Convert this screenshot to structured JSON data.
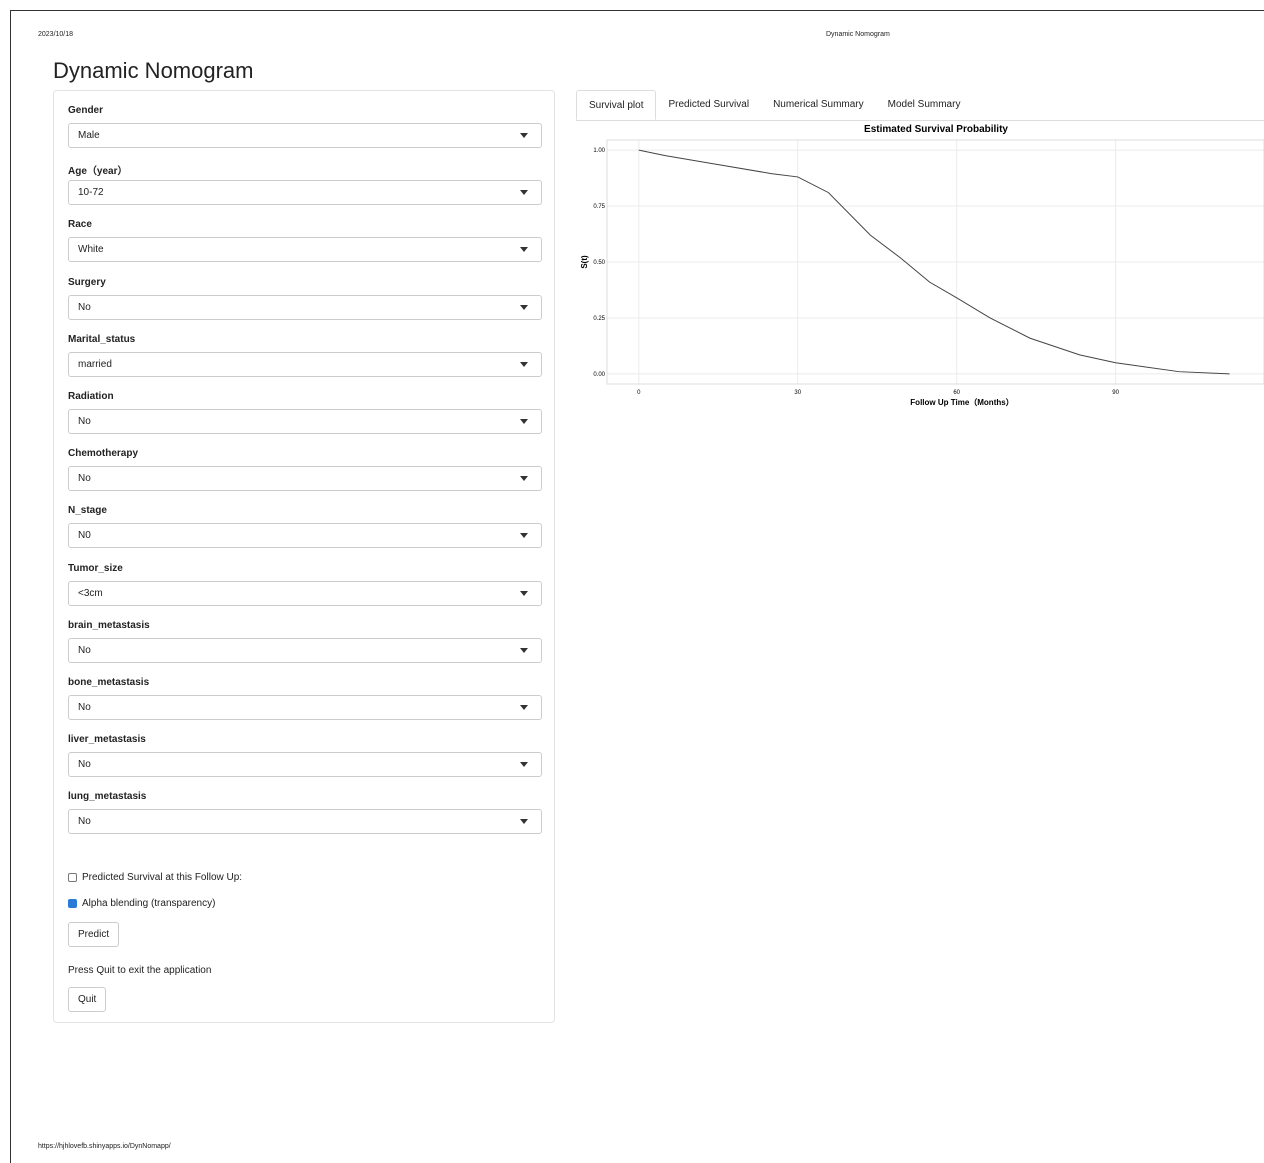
{
  "header": {
    "date": "2023/10/18",
    "page_title": "Dynamic Nomogram",
    "url": "https://hjhlovefb.shinyapps.io/DynNomapp/"
  },
  "app_title": "Dynamic Nomogram",
  "inputs": [
    {
      "label": "Gender",
      "value": "Male"
    },
    {
      "label": "Age（year）",
      "value": "10-72"
    },
    {
      "label": "Race",
      "value": "White"
    },
    {
      "label": "Surgery",
      "value": "No"
    },
    {
      "label": "Marital_status",
      "value": "married"
    },
    {
      "label": "Radiation",
      "value": "No"
    },
    {
      "label": "Chemotherapy",
      "value": "No"
    },
    {
      "label": "N_stage",
      "value": "N0"
    },
    {
      "label": "Tumor_size",
      "value": "<3cm"
    },
    {
      "label": "brain_metastasis",
      "value": "No"
    },
    {
      "label": "bone_metastasis",
      "value": "No"
    },
    {
      "label": "liver_metastasis",
      "value": "No"
    },
    {
      "label": "lung_metastasis",
      "value": "No"
    }
  ],
  "checkboxes": [
    {
      "label": "Predicted Survival at this Follow Up:",
      "checked": false
    },
    {
      "label": "Alpha blending (transparency)",
      "checked": true
    }
  ],
  "predict_button": "Predict",
  "quit_text": "Press Quit to exit the application",
  "quit_button": "Quit",
  "tabs": [
    {
      "label": "Survival plot",
      "active": true
    },
    {
      "label": "Predicted Survival",
      "active": false
    },
    {
      "label": "Numerical Summary",
      "active": false
    },
    {
      "label": "Model Summary",
      "active": false
    }
  ],
  "chart_data": {
    "type": "line",
    "title": "Estimated Survival Probability",
    "x_label": "Follow Up Time（Months）",
    "y_label": "S(t)",
    "x": [
      0,
      5,
      15,
      25,
      30,
      35.8,
      43.7,
      49.3,
      54.9,
      60,
      66.3,
      73.8,
      83.2,
      90,
      102,
      111.5
    ],
    "series": [
      {
        "color": "#444444",
        "values": [
          1.0,
          0.975,
          0.935,
          0.895,
          0.88,
          0.81,
          0.62,
          0.52,
          0.41,
          0.34,
          0.25,
          0.16,
          0.085,
          0.05,
          0.01,
          0.0
        ]
      }
    ],
    "xlim": [
      -6,
      118
    ],
    "ylim": [
      -0.045,
      1.045
    ],
    "xticks": [
      0,
      30,
      60,
      90
    ],
    "yticks": [
      {
        "value": 0,
        "label": "0.00"
      },
      {
        "value": 0.25,
        "label": "0.25"
      },
      {
        "value": 0.5,
        "label": "0.50"
      },
      {
        "value": 0.75,
        "label": "0.75"
      },
      {
        "value": 1,
        "label": "1.00"
      }
    ],
    "grid": true
  }
}
